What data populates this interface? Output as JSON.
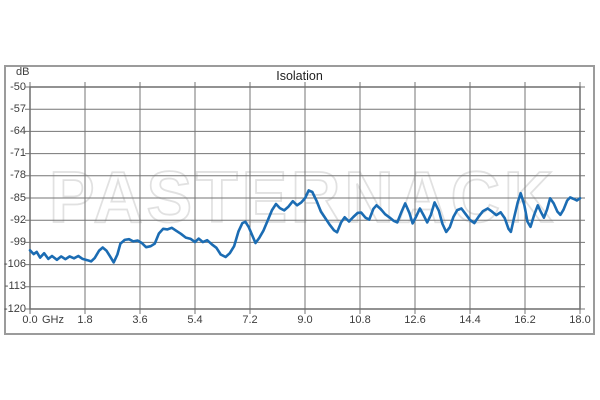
{
  "watermark": "PASTERNACK",
  "colors": {
    "line": "#1b6cb3",
    "grid": "#757575",
    "plot_border": "#6e6e6e",
    "outer_border": "#9b9b9b",
    "label_text": "#3d3d3d",
    "title_text": "#1f1f1f",
    "watermark": "#e1e1e1"
  },
  "chart_data": {
    "type": "line",
    "title": "Isolation",
    "xlabel": "GHz",
    "ylabel": "dB",
    "xlim": [
      0,
      18
    ],
    "ylim": [
      -120,
      -50
    ],
    "grid": true,
    "legend_position": "none",
    "x_ticks": [
      0,
      1.8,
      3.6,
      5.4,
      7.2,
      9,
      10.8,
      12.6,
      14.4,
      16.2,
      18
    ],
    "x_tick_labels": [
      "0.0",
      "1.8",
      "3.6",
      "5.4",
      "7.2",
      "9.0",
      "10.8",
      "12.6",
      "14.4",
      "16.2",
      "18.0"
    ],
    "y_ticks": [
      -50,
      -57,
      -64,
      -71,
      -78,
      -85,
      -92,
      -99,
      -106,
      -113,
      -120
    ],
    "y_tick_labels": [
      "-50",
      "-57",
      "-64",
      "-71",
      "-78",
      "-85",
      "-92",
      "-99",
      "-106",
      "-113",
      "-120"
    ],
    "series": [
      {
        "name": "Isolation",
        "points": [
          [
            0,
            -101.5
          ],
          [
            0.12,
            -102.7
          ],
          [
            0.22,
            -102.0
          ],
          [
            0.33,
            -103.8
          ],
          [
            0.46,
            -102.4
          ],
          [
            0.6,
            -104.2
          ],
          [
            0.72,
            -103.3
          ],
          [
            0.88,
            -104.5
          ],
          [
            1.02,
            -103.4
          ],
          [
            1.16,
            -104.3
          ],
          [
            1.3,
            -103.4
          ],
          [
            1.44,
            -104.0
          ],
          [
            1.58,
            -103.3
          ],
          [
            1.72,
            -104.2
          ],
          [
            1.88,
            -104.6
          ],
          [
            2.0,
            -105.0
          ],
          [
            2.12,
            -103.9
          ],
          [
            2.26,
            -101.6
          ],
          [
            2.38,
            -100.6
          ],
          [
            2.5,
            -101.6
          ],
          [
            2.62,
            -103.4
          ],
          [
            2.74,
            -105.3
          ],
          [
            2.86,
            -102.8
          ],
          [
            2.96,
            -99.4
          ],
          [
            3.1,
            -98.2
          ],
          [
            3.24,
            -98.0
          ],
          [
            3.38,
            -98.7
          ],
          [
            3.52,
            -98.4
          ],
          [
            3.66,
            -99.2
          ],
          [
            3.8,
            -100.5
          ],
          [
            3.95,
            -100.2
          ],
          [
            4.08,
            -99.4
          ],
          [
            4.22,
            -96.2
          ],
          [
            4.36,
            -94.7
          ],
          [
            4.5,
            -94.9
          ],
          [
            4.64,
            -94.4
          ],
          [
            4.78,
            -95.3
          ],
          [
            4.94,
            -96.3
          ],
          [
            5.1,
            -97.5
          ],
          [
            5.26,
            -97.9
          ],
          [
            5.4,
            -98.9
          ],
          [
            5.52,
            -97.8
          ],
          [
            5.66,
            -98.9
          ],
          [
            5.8,
            -98.3
          ],
          [
            5.95,
            -99.6
          ],
          [
            6.1,
            -100.7
          ],
          [
            6.24,
            -102.8
          ],
          [
            6.4,
            -103.6
          ],
          [
            6.54,
            -102.4
          ],
          [
            6.68,
            -100.2
          ],
          [
            6.82,
            -95.6
          ],
          [
            6.95,
            -92.9
          ],
          [
            7.05,
            -92.5
          ],
          [
            7.16,
            -94.2
          ],
          [
            7.28,
            -96.9
          ],
          [
            7.38,
            -99.2
          ],
          [
            7.5,
            -97.6
          ],
          [
            7.64,
            -95.3
          ],
          [
            7.78,
            -92.1
          ],
          [
            7.92,
            -88.8
          ],
          [
            8.05,
            -86.9
          ],
          [
            8.18,
            -88.2
          ],
          [
            8.32,
            -88.9
          ],
          [
            8.46,
            -87.7
          ],
          [
            8.6,
            -86.0
          ],
          [
            8.74,
            -87.3
          ],
          [
            8.88,
            -86.4
          ],
          [
            9.0,
            -85.1
          ],
          [
            9.12,
            -82.6
          ],
          [
            9.24,
            -83.1
          ],
          [
            9.38,
            -85.9
          ],
          [
            9.52,
            -89.3
          ],
          [
            9.66,
            -91.3
          ],
          [
            9.8,
            -93.3
          ],
          [
            9.95,
            -95.2
          ],
          [
            10.05,
            -95.8
          ],
          [
            10.18,
            -92.7
          ],
          [
            10.3,
            -91.1
          ],
          [
            10.44,
            -92.4
          ],
          [
            10.58,
            -91.0
          ],
          [
            10.72,
            -89.7
          ],
          [
            10.84,
            -89.6
          ],
          [
            10.98,
            -91.2
          ],
          [
            11.1,
            -91.8
          ],
          [
            11.24,
            -88.4
          ],
          [
            11.34,
            -87.3
          ],
          [
            11.48,
            -88.5
          ],
          [
            11.62,
            -90.1
          ],
          [
            11.76,
            -91.1
          ],
          [
            11.9,
            -92.2
          ],
          [
            12.02,
            -92.7
          ],
          [
            12.16,
            -89.3
          ],
          [
            12.28,
            -86.7
          ],
          [
            12.42,
            -89.8
          ],
          [
            12.52,
            -93.0
          ],
          [
            12.64,
            -90.8
          ],
          [
            12.76,
            -88.3
          ],
          [
            12.9,
            -90.8
          ],
          [
            13.0,
            -92.7
          ],
          [
            13.12,
            -90.3
          ],
          [
            13.24,
            -86.4
          ],
          [
            13.38,
            -89.0
          ],
          [
            13.5,
            -93.2
          ],
          [
            13.62,
            -95.7
          ],
          [
            13.74,
            -94.2
          ],
          [
            13.86,
            -90.9
          ],
          [
            13.98,
            -88.8
          ],
          [
            14.12,
            -88.3
          ],
          [
            14.26,
            -90.1
          ],
          [
            14.4,
            -91.9
          ],
          [
            14.54,
            -92.9
          ],
          [
            14.68,
            -90.9
          ],
          [
            14.82,
            -89.2
          ],
          [
            14.98,
            -88.3
          ],
          [
            15.12,
            -89.3
          ],
          [
            15.26,
            -90.4
          ],
          [
            15.4,
            -89.5
          ],
          [
            15.54,
            -91.4
          ],
          [
            15.66,
            -94.7
          ],
          [
            15.74,
            -95.7
          ],
          [
            15.84,
            -91.3
          ],
          [
            15.96,
            -86.4
          ],
          [
            16.06,
            -83.5
          ],
          [
            16.18,
            -87.3
          ],
          [
            16.28,
            -92.4
          ],
          [
            16.38,
            -94.1
          ],
          [
            16.5,
            -90.3
          ],
          [
            16.62,
            -87.3
          ],
          [
            16.72,
            -89.4
          ],
          [
            16.82,
            -91.2
          ],
          [
            16.92,
            -88.7
          ],
          [
            17.02,
            -85.1
          ],
          [
            17.14,
            -86.7
          ],
          [
            17.26,
            -89.3
          ],
          [
            17.36,
            -90.3
          ],
          [
            17.46,
            -88.7
          ],
          [
            17.58,
            -85.8
          ],
          [
            17.68,
            -84.8
          ],
          [
            17.8,
            -85.3
          ],
          [
            17.9,
            -85.8
          ],
          [
            18,
            -85.1
          ]
        ]
      }
    ]
  }
}
